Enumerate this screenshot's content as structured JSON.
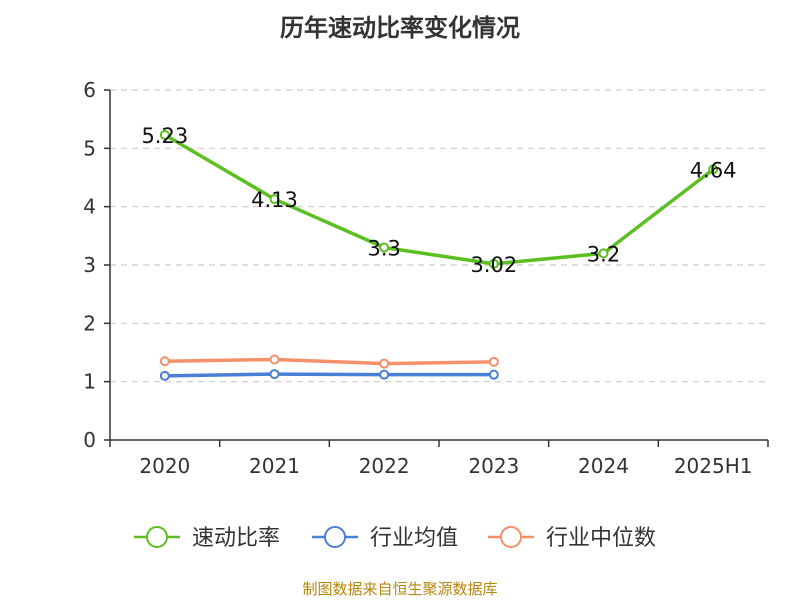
{
  "title": "历年速动比率变化情况",
  "source": "制图数据来自恒生聚源数据库",
  "colors": {
    "grid": "#cccccc",
    "axis": "#333333"
  },
  "chart_data": {
    "type": "line",
    "categories": [
      "2020",
      "2021",
      "2022",
      "2023",
      "2024",
      "2025H1"
    ],
    "ylim": [
      0,
      6
    ],
    "yticks": [
      0,
      1,
      2,
      3,
      4,
      5,
      6
    ],
    "grid": true,
    "legend_position": "bottom",
    "series": [
      {
        "name": "速动比率",
        "color": "#5bbf21",
        "values": [
          5.23,
          4.13,
          3.3,
          3.02,
          3.2,
          4.64
        ],
        "labels": [
          "5.23",
          "4.13",
          "3.3",
          "3.02",
          "3.2",
          "4.64"
        ]
      },
      {
        "name": "行业均值",
        "color": "#4a7fd6",
        "values": [
          1.1,
          1.13,
          1.12,
          1.12,
          null,
          null
        ]
      },
      {
        "name": "行业中位数",
        "color": "#f4906a",
        "values": [
          1.35,
          1.38,
          1.31,
          1.34,
          null,
          null
        ]
      }
    ]
  }
}
